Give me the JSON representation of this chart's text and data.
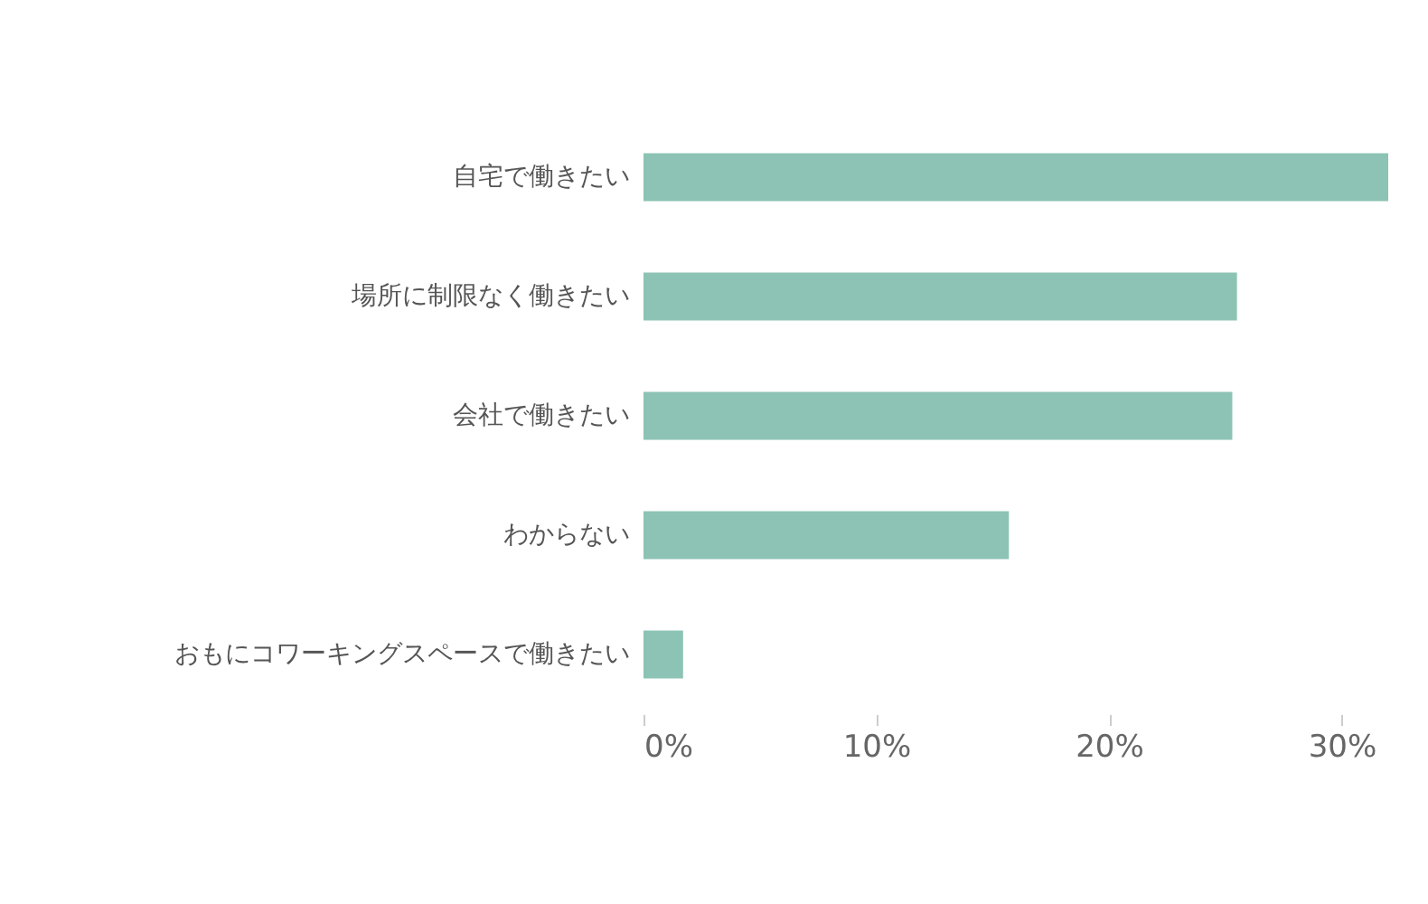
{
  "chart_data": {
    "type": "bar",
    "orientation": "horizontal",
    "categories": [
      "自宅で働きたい",
      "場所に制限なく働きたい",
      "会社で働きたい",
      "わからない",
      "おもにコワーキングスペースで働きたい"
    ],
    "values": [
      32.0,
      25.5,
      25.3,
      15.7,
      1.7
    ],
    "color": "#8cc3b4",
    "xlim": [
      0,
      32
    ],
    "xticks": [
      {
        "value": 0,
        "label": "0%"
      },
      {
        "value": 10,
        "label": "10%"
      },
      {
        "value": 20,
        "label": "20%"
      },
      {
        "value": 30,
        "label": "30%"
      }
    ],
    "grid": false
  }
}
